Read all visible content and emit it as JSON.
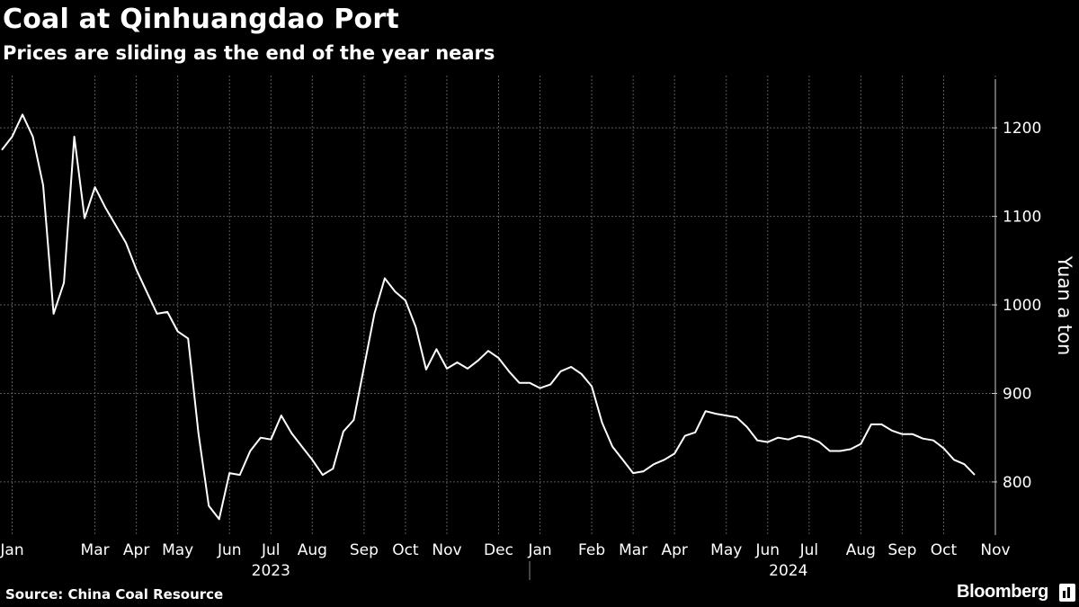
{
  "title": "Coal at Qinhuangdao Port",
  "subtitle": "Prices are sliding as the end of the year nears",
  "source": "Source: China Coal Resource",
  "brand": "Bloomberg",
  "brand_icon": "bloomberg-terminal-icon",
  "colors": {
    "background": "#000000",
    "line": "#ffffff",
    "grid": "#5a5a5a"
  },
  "chart_data": {
    "type": "line",
    "ylabel": "Yuan a ton",
    "y_ticks": [
      800,
      900,
      1000,
      1100,
      1200
    ],
    "ylim": [
      740,
      1255
    ],
    "x_axis": "weekly, Jan 2023 to Dec 2024",
    "month_ticks": [
      {
        "label": "Jan",
        "week": 1
      },
      {
        "label": "Mar",
        "week": 9
      },
      {
        "label": "Apr",
        "week": 13
      },
      {
        "label": "May",
        "week": 17
      },
      {
        "label": "Jun",
        "week": 22
      },
      {
        "label": "Jul",
        "week": 26
      },
      {
        "label": "Aug",
        "week": 30
      },
      {
        "label": "Sep",
        "week": 35
      },
      {
        "label": "Oct",
        "week": 39
      },
      {
        "label": "Nov",
        "week": 43
      },
      {
        "label": "Dec",
        "week": 48
      },
      {
        "label": "Jan",
        "week": 52
      },
      {
        "label": "Feb",
        "week": 57
      },
      {
        "label": "Mar",
        "week": 61
      },
      {
        "label": "Apr",
        "week": 65
      },
      {
        "label": "May",
        "week": 70
      },
      {
        "label": "Jun",
        "week": 74
      },
      {
        "label": "Jul",
        "week": 78
      },
      {
        "label": "Aug",
        "week": 83
      },
      {
        "label": "Sep",
        "week": 87
      },
      {
        "label": "Oct",
        "week": 91
      },
      {
        "label": "Nov",
        "week": 96
      }
    ],
    "years": [
      {
        "label": "2023",
        "week": 26
      },
      {
        "label": "2024",
        "week": 76
      }
    ],
    "year_divider_week": 51,
    "series": [
      {
        "values": [
          1175,
          1190,
          1215,
          1190,
          1135,
          990,
          1025,
          1190,
          1098,
          1133,
          1110,
          1090,
          1070,
          1040,
          1015,
          990,
          992,
          970,
          962,
          855,
          773,
          758,
          810,
          808,
          835,
          850,
          848,
          875,
          855,
          840,
          825,
          808,
          815,
          857,
          870,
          930,
          990,
          1030,
          1015,
          1005,
          975,
          927,
          950,
          928,
          935,
          928,
          937,
          948,
          940,
          925,
          912,
          912,
          906,
          910,
          925,
          930,
          922,
          908,
          867,
          840,
          825,
          810,
          812,
          820,
          825,
          832,
          852,
          856,
          880,
          877,
          875,
          873,
          862,
          847,
          845,
          850,
          848,
          852,
          850,
          845,
          835,
          835,
          837,
          843,
          865,
          865,
          858,
          854,
          854,
          849,
          847,
          838,
          825,
          820,
          808
        ]
      }
    ]
  }
}
